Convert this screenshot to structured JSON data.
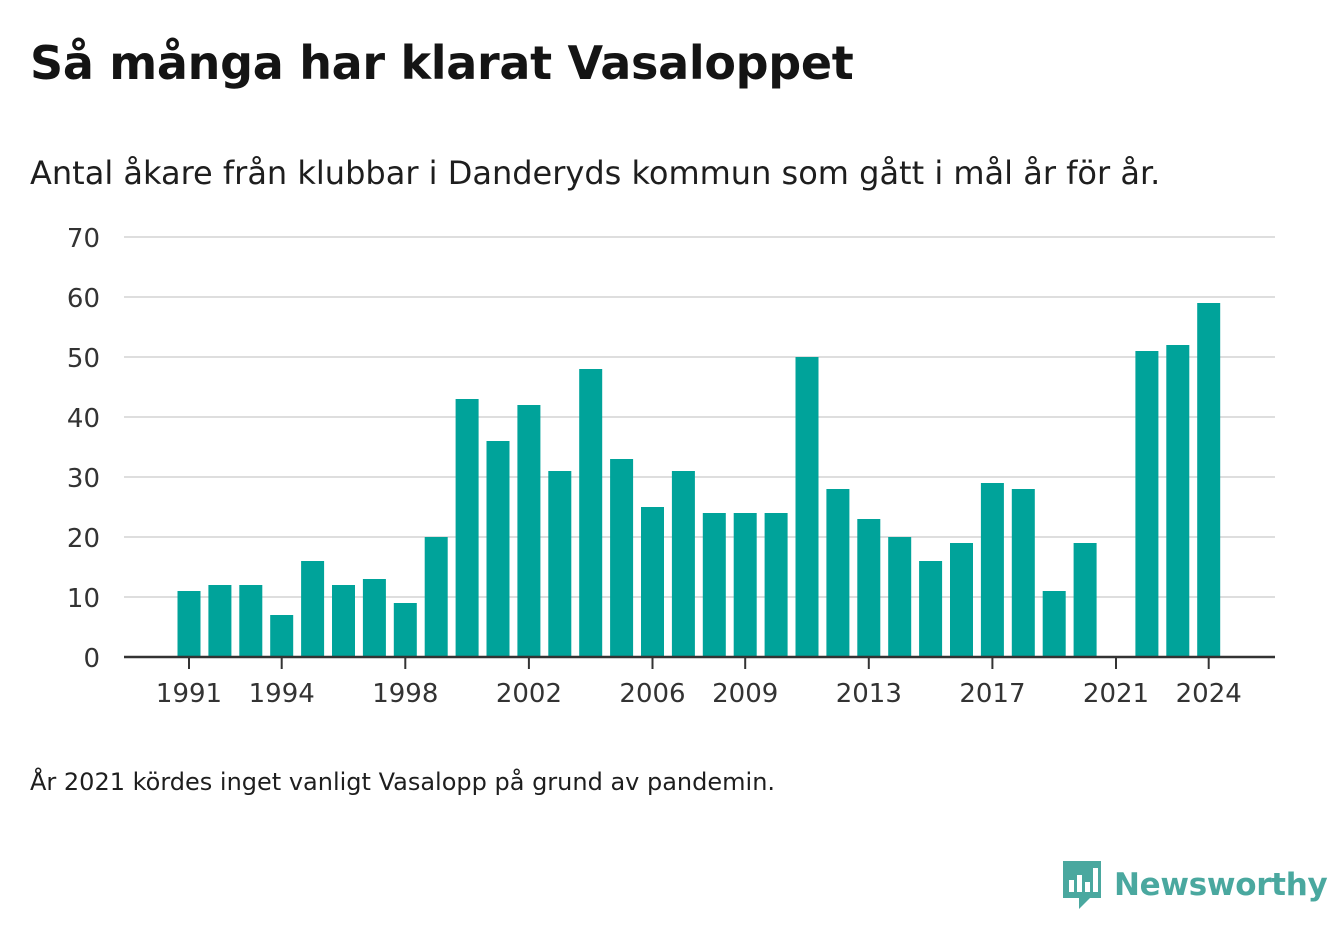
{
  "chart_data": {
    "type": "bar",
    "title": "Så många har klarat Vasaloppet",
    "subtitle": "Antal åkare från klubbar i Danderyds kommun som gått i mål år för år.",
    "categories": [
      1991,
      1992,
      1993,
      1994,
      1995,
      1996,
      1997,
      1998,
      1999,
      2000,
      2001,
      2002,
      2003,
      2004,
      2005,
      2006,
      2007,
      2008,
      2009,
      2010,
      2011,
      2012,
      2013,
      2014,
      2015,
      2016,
      2017,
      2018,
      2019,
      2020,
      2021,
      2022,
      2023,
      2024
    ],
    "values": [
      11,
      12,
      12,
      7,
      16,
      12,
      13,
      9,
      20,
      43,
      36,
      42,
      31,
      48,
      33,
      25,
      31,
      24,
      24,
      24,
      50,
      28,
      23,
      20,
      16,
      19,
      29,
      28,
      11,
      19,
      null,
      51,
      52,
      59
    ],
    "x_tick_labels": [
      "1991",
      "1994",
      "1998",
      "2002",
      "2006",
      "2009",
      "2013",
      "2017",
      "2021",
      "2024"
    ],
    "y_ticks": [
      0,
      10,
      20,
      30,
      40,
      50,
      60,
      70
    ],
    "ylim": [
      0,
      70
    ],
    "xlabel": "",
    "ylabel": "",
    "grid": true,
    "bar_color": "#00a39a",
    "gridline_color": "#dedede",
    "axis_color": "#333333"
  },
  "footnote": "År 2021 kördes inget vanligt Vasalopp på grund av pandemin.",
  "brand": {
    "name": "Newsworthy",
    "icon": "newsworthy-logo-icon",
    "color": "#4aa89f"
  }
}
